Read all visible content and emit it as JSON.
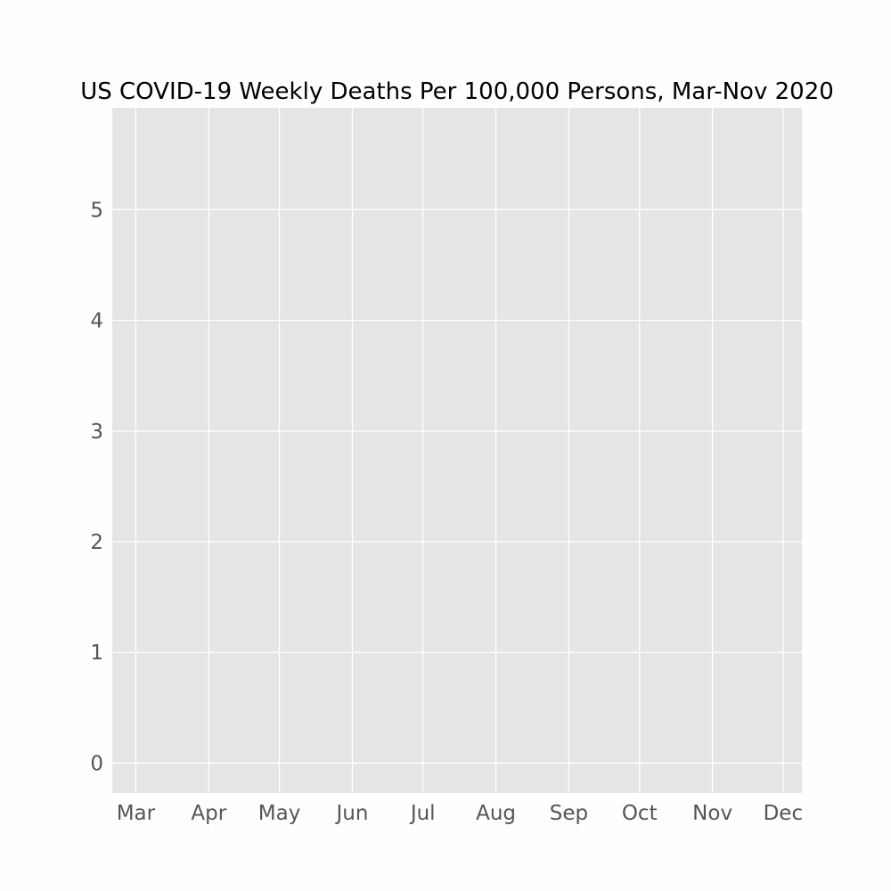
{
  "chart_data": {
    "type": "line",
    "title": "US COVID-19 Weekly Deaths Per 100,000 Persons, Mar-Nov 2020",
    "xlabel": "",
    "ylabel": "",
    "x_axis": {
      "type": "date",
      "range": [
        "2020-02-20",
        "2020-12-09"
      ],
      "ticks": [
        {
          "date": "2020-03-01",
          "label": "Mar"
        },
        {
          "date": "2020-04-01",
          "label": "Apr"
        },
        {
          "date": "2020-05-01",
          "label": "May"
        },
        {
          "date": "2020-06-01",
          "label": "Jun"
        },
        {
          "date": "2020-07-01",
          "label": "Jul"
        },
        {
          "date": "2020-08-01",
          "label": "Aug"
        },
        {
          "date": "2020-09-01",
          "label": "Sep"
        },
        {
          "date": "2020-10-01",
          "label": "Oct"
        },
        {
          "date": "2020-11-01",
          "label": "Nov"
        },
        {
          "date": "2020-12-01",
          "label": "Dec"
        }
      ]
    },
    "y_axis": {
      "range": [
        -0.27,
        5.92
      ],
      "ticks": [
        {
          "value": 0,
          "label": "0"
        },
        {
          "value": 1,
          "label": "1"
        },
        {
          "value": 2,
          "label": "2"
        },
        {
          "value": 3,
          "label": "3"
        },
        {
          "value": 4,
          "label": "4"
        },
        {
          "value": 5,
          "label": "5"
        }
      ]
    },
    "series": [],
    "grid": true,
    "legend": "none",
    "colors": {
      "plot_background": "#e5e5e5",
      "grid": "#ffffff",
      "page_background": "#fefefe",
      "tick_label": "#555555",
      "title": "#000000"
    }
  }
}
